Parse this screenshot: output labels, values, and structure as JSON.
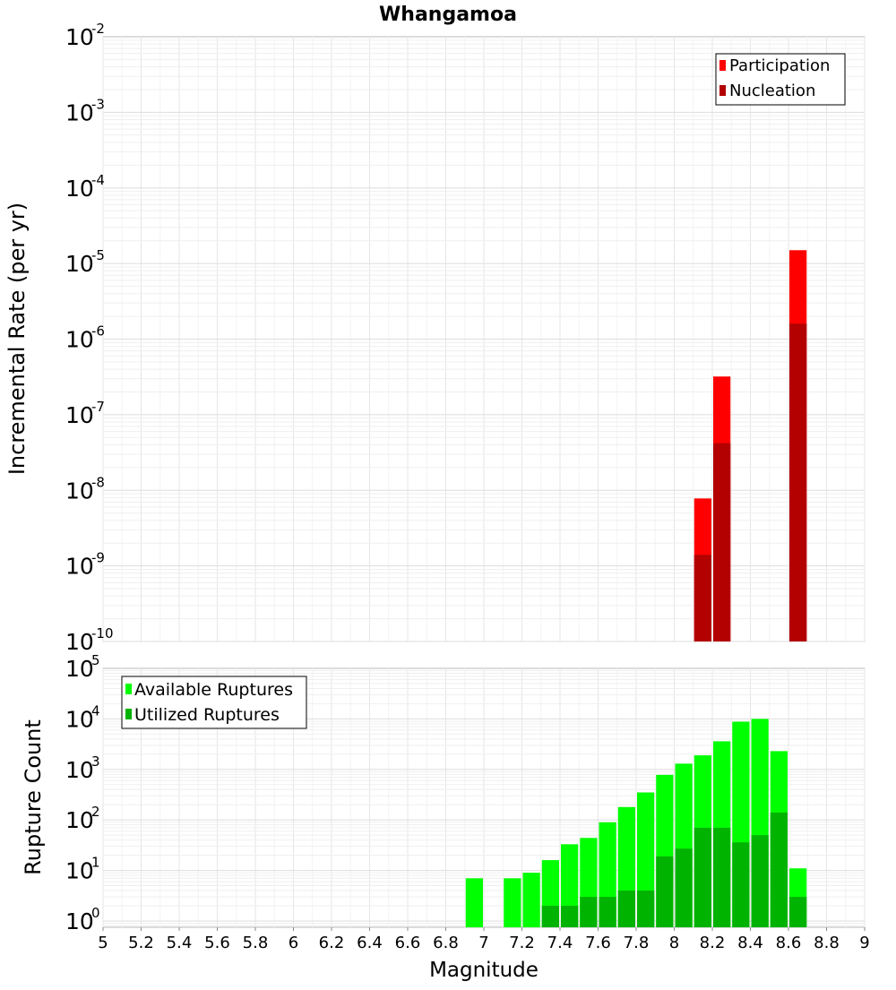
{
  "title": "Whangamoa",
  "xlabel": "Magnitude",
  "x_ticks": [
    "5",
    "5.2",
    "5.4",
    "5.6",
    "5.8",
    "6",
    "6.2",
    "6.4",
    "6.6",
    "6.8",
    "7",
    "7.2",
    "7.4",
    "7.6",
    "7.8",
    "8",
    "8.2",
    "8.4",
    "8.6",
    "8.8",
    "9"
  ],
  "colors": {
    "participation": "#ff0000",
    "nucleation": "#b30000",
    "available": "#00ff00",
    "utilized": "#00b300"
  },
  "chart_data": [
    {
      "type": "bar",
      "title": "Whangamoa",
      "xlabel": "Magnitude",
      "ylabel": "Incremental Rate (per yr)",
      "xlim": [
        5,
        9
      ],
      "ylim": [
        1e-10,
        0.01
      ],
      "yscale": "log",
      "y_tick_exponents": [
        "-10",
        "-9",
        "-8",
        "-7",
        "-6",
        "-5",
        "-4",
        "-3",
        "-2"
      ],
      "grid": true,
      "legend_position": "top-right",
      "series": [
        {
          "name": "Participation",
          "x": [
            8.15,
            8.25,
            8.65
          ],
          "values": [
            7.8e-09,
            3.2e-07,
            1.5e-05
          ]
        },
        {
          "name": "Nucleation",
          "x": [
            8.15,
            8.25,
            8.65
          ],
          "values": [
            1.4e-09,
            4.2e-08,
            1.6e-06
          ]
        }
      ]
    },
    {
      "type": "bar",
      "xlabel": "Magnitude",
      "ylabel": "Rupture Count",
      "xlim": [
        5,
        9
      ],
      "ylim": [
        0.75,
        100000.0
      ],
      "yscale": "log",
      "y_tick_exponents": [
        "0",
        "1",
        "2",
        "3",
        "4",
        "5"
      ],
      "grid": true,
      "legend_position": "top-left",
      "series": [
        {
          "name": "Available Ruptures",
          "x": [
            6.95,
            7.15,
            7.25,
            7.35,
            7.45,
            7.55,
            7.65,
            7.75,
            7.85,
            7.95,
            8.05,
            8.15,
            8.25,
            8.35,
            8.45,
            8.55,
            8.65
          ],
          "values": [
            7,
            7,
            9,
            16,
            33,
            44,
            90,
            180,
            350,
            780,
            1300,
            1900,
            3600,
            8800,
            10000,
            2300,
            11
          ]
        },
        {
          "name": "Utilized Ruptures",
          "x": [
            7.35,
            7.45,
            7.55,
            7.65,
            7.75,
            7.85,
            7.95,
            8.05,
            8.15,
            8.25,
            8.35,
            8.45,
            8.55,
            8.65
          ],
          "values": [
            2,
            2,
            3,
            3,
            4,
            4,
            19,
            27,
            70,
            70,
            36,
            50,
            140,
            3
          ]
        }
      ]
    }
  ]
}
